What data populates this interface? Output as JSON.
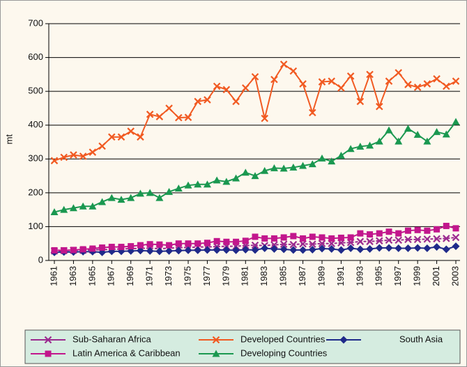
{
  "chart_data": {
    "type": "line",
    "y_label": "mt",
    "x": [
      1961,
      1962,
      1963,
      1964,
      1965,
      1966,
      1967,
      1968,
      1969,
      1970,
      1971,
      1972,
      1973,
      1974,
      1975,
      1976,
      1977,
      1978,
      1979,
      1980,
      1981,
      1982,
      1983,
      1984,
      1985,
      1986,
      1987,
      1988,
      1989,
      1990,
      1991,
      1992,
      1993,
      1994,
      1995,
      1996,
      1997,
      1998,
      1999,
      2000,
      2001,
      2002,
      2003
    ],
    "xlim": [
      1961,
      2003
    ],
    "xticks": [
      1961,
      1963,
      1965,
      1967,
      1969,
      1971,
      1973,
      1975,
      1977,
      1979,
      1981,
      1983,
      1985,
      1987,
      1989,
      1991,
      1993,
      1995,
      1997,
      1999,
      2001,
      2003
    ],
    "ylim": [
      0,
      700
    ],
    "yticks": [
      0,
      100,
      200,
      300,
      400,
      500,
      600,
      700
    ],
    "grid": true,
    "series": [
      {
        "name": "Sub-Saharan Africa",
        "color": "#9b2a8f",
        "marker": "x",
        "values": [
          28,
          29,
          30,
          30,
          31,
          32,
          33,
          34,
          35,
          36,
          36,
          35,
          36,
          38,
          38,
          40,
          40,
          41,
          42,
          42,
          44,
          45,
          44,
          46,
          48,
          47,
          49,
          48,
          50,
          50,
          52,
          53,
          56,
          56,
          58,
          60,
          60,
          62,
          62,
          63,
          64,
          65,
          68
        ]
      },
      {
        "name": "Developed Countries",
        "color": "#f15a22",
        "marker": "x",
        "values": [
          295,
          305,
          312,
          308,
          320,
          338,
          365,
          365,
          382,
          365,
          432,
          425,
          450,
          422,
          423,
          470,
          475,
          515,
          505,
          470,
          510,
          543,
          420,
          535,
          580,
          560,
          522,
          437,
          528,
          530,
          510,
          545,
          470,
          550,
          455,
          530,
          555,
          520,
          512,
          522,
          537,
          515,
          530
        ]
      },
      {
        "name": "South Asia",
        "color": "#1f2a8a",
        "marker": "diamond",
        "values": [
          24,
          25,
          25,
          26,
          26,
          24,
          27,
          27,
          28,
          29,
          28,
          27,
          28,
          29,
          30,
          30,
          31,
          31,
          31,
          30,
          32,
          31,
          36,
          34,
          33,
          31,
          31,
          32,
          35,
          34,
          31,
          36,
          33,
          34,
          37,
          37,
          36,
          36,
          37,
          36,
          40,
          33,
          42
        ]
      },
      {
        "name": "Latin America & Caribbean",
        "color": "#c2168c",
        "marker": "square",
        "values": [
          30,
          30,
          31,
          33,
          35,
          38,
          40,
          40,
          42,
          45,
          48,
          47,
          45,
          50,
          50,
          50,
          52,
          57,
          55,
          55,
          58,
          70,
          65,
          65,
          68,
          72,
          65,
          70,
          68,
          65,
          67,
          68,
          80,
          77,
          80,
          85,
          80,
          88,
          90,
          88,
          92,
          102,
          95
        ]
      },
      {
        "name": "Developing Countries",
        "color": "#1a9850",
        "marker": "triangle",
        "values": [
          143,
          150,
          155,
          160,
          160,
          173,
          185,
          180,
          185,
          198,
          200,
          185,
          203,
          213,
          222,
          225,
          225,
          237,
          233,
          243,
          260,
          250,
          265,
          273,
          272,
          275,
          280,
          285,
          302,
          293,
          310,
          330,
          337,
          340,
          352,
          385,
          352,
          390,
          372,
          352,
          380,
          373,
          410
        ]
      }
    ]
  }
}
